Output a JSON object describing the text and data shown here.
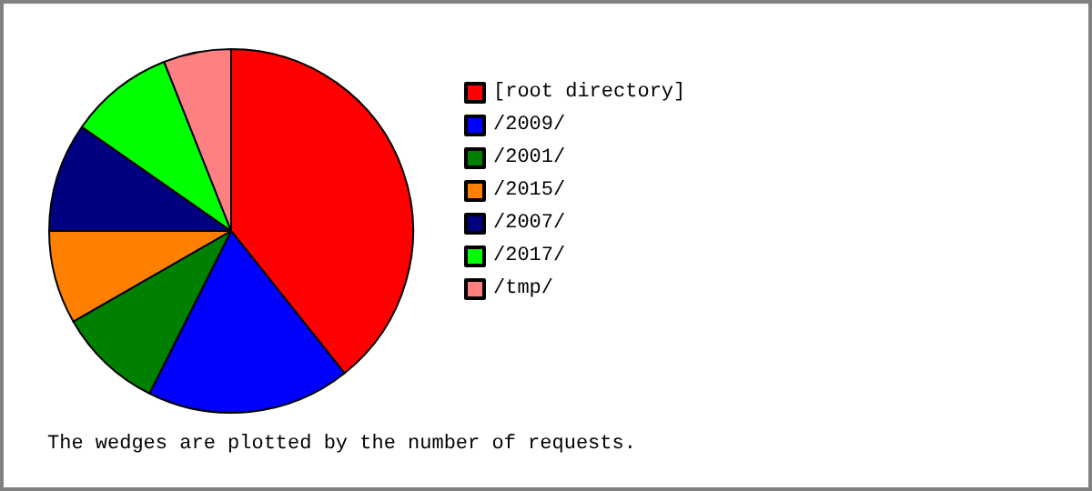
{
  "chart_data": {
    "type": "pie",
    "categories": [
      "[root directory]",
      "/2009/",
      "/2001/",
      "/2015/",
      "/2007/",
      "/2017/",
      "/tmp/"
    ],
    "values": [
      39.3,
      18.1,
      9.3,
      8.3,
      9.7,
      9.3,
      6.0
    ],
    "colors": [
      "#ff0000",
      "#0000ff",
      "#008000",
      "#ff8000",
      "#000080",
      "#00ff00",
      "#ff8080"
    ],
    "legend": "right",
    "annotations": [
      "The wedges are plotted by the number of requests."
    ]
  }
}
